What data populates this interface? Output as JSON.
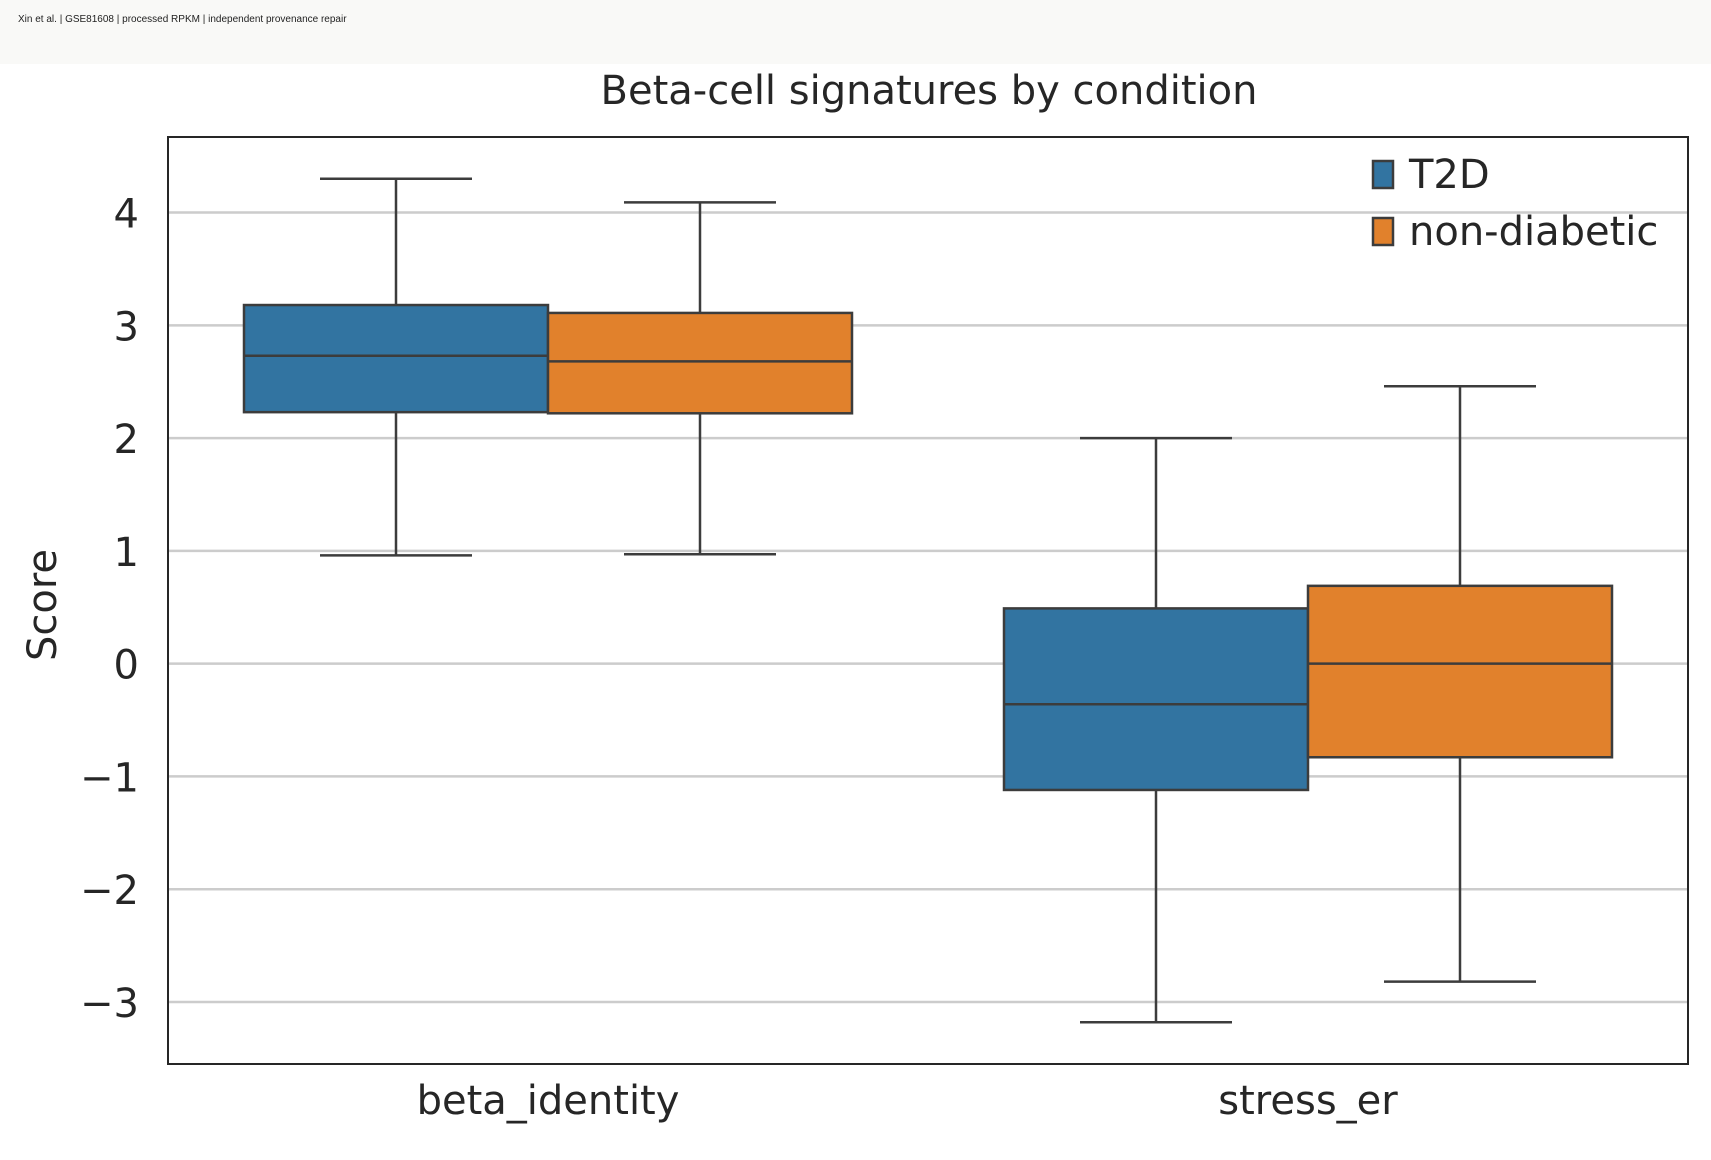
{
  "header": {
    "caption": "Xin et al. | GSE81608 | processed RPKM | independent provenance repair"
  },
  "colors": {
    "T2D": "#3274a1",
    "non-diabetic": "#e1812c",
    "grid": "#cccccc",
    "line": "#3c3c3c"
  },
  "chart_data": {
    "type": "box",
    "title": "Beta-cell signatures by condition",
    "xlabel": "",
    "ylabel": "Score",
    "categories": [
      "beta_identity",
      "stress_er"
    ],
    "ylim": [
      -3.55,
      4.67
    ],
    "yticks": [
      -3,
      -2,
      -1,
      0,
      1,
      2,
      3,
      4
    ],
    "ytick_labels": [
      "−3",
      "−2",
      "−1",
      "0",
      "1",
      "2",
      "3",
      "4"
    ],
    "grid": "horizontal",
    "legend_position": "top-right",
    "series": [
      {
        "name": "T2D",
        "boxes": [
          {
            "whisker_low": 0.96,
            "q1": 2.23,
            "median": 2.73,
            "q3": 3.18,
            "whisker_high": 4.3
          },
          {
            "whisker_low": -3.18,
            "q1": -1.12,
            "median": -0.36,
            "q3": 0.49,
            "whisker_high": 2.0
          }
        ]
      },
      {
        "name": "non-diabetic",
        "boxes": [
          {
            "whisker_low": 0.97,
            "q1": 2.22,
            "median": 2.68,
            "q3": 3.11,
            "whisker_high": 4.09
          },
          {
            "whisker_low": -2.82,
            "q1": -0.83,
            "median": 0.0,
            "q3": 0.69,
            "whisker_high": 2.46
          }
        ]
      }
    ]
  }
}
